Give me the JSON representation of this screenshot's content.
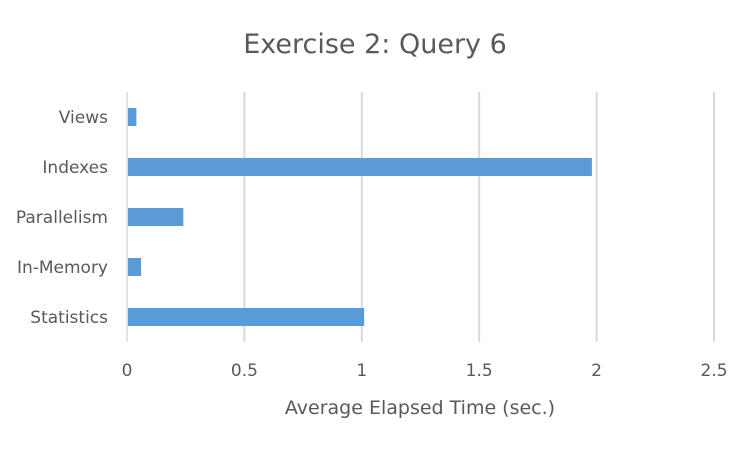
{
  "chart_data": {
    "type": "bar",
    "orientation": "horizontal",
    "title": "Exercise 2: Query 6",
    "xlabel": "Average Elapsed Time (sec.)",
    "ylabel": "",
    "categories": [
      "Views",
      "Indexes",
      "Parallelism",
      "In-Memory",
      "Statistics"
    ],
    "values": [
      0.04,
      1.98,
      0.24,
      0.06,
      1.01
    ],
    "xlim": [
      0,
      2.5
    ],
    "xticks": [
      0,
      0.5,
      1,
      1.5,
      2,
      2.5
    ],
    "xtick_labels": [
      "0",
      "0.5",
      "1",
      "1.5",
      "2",
      "2.5"
    ],
    "grid": true,
    "legend": "none",
    "bar_color": "#5b9bd5",
    "grid_color": "#d9d9d9",
    "text_color": "#595959"
  }
}
